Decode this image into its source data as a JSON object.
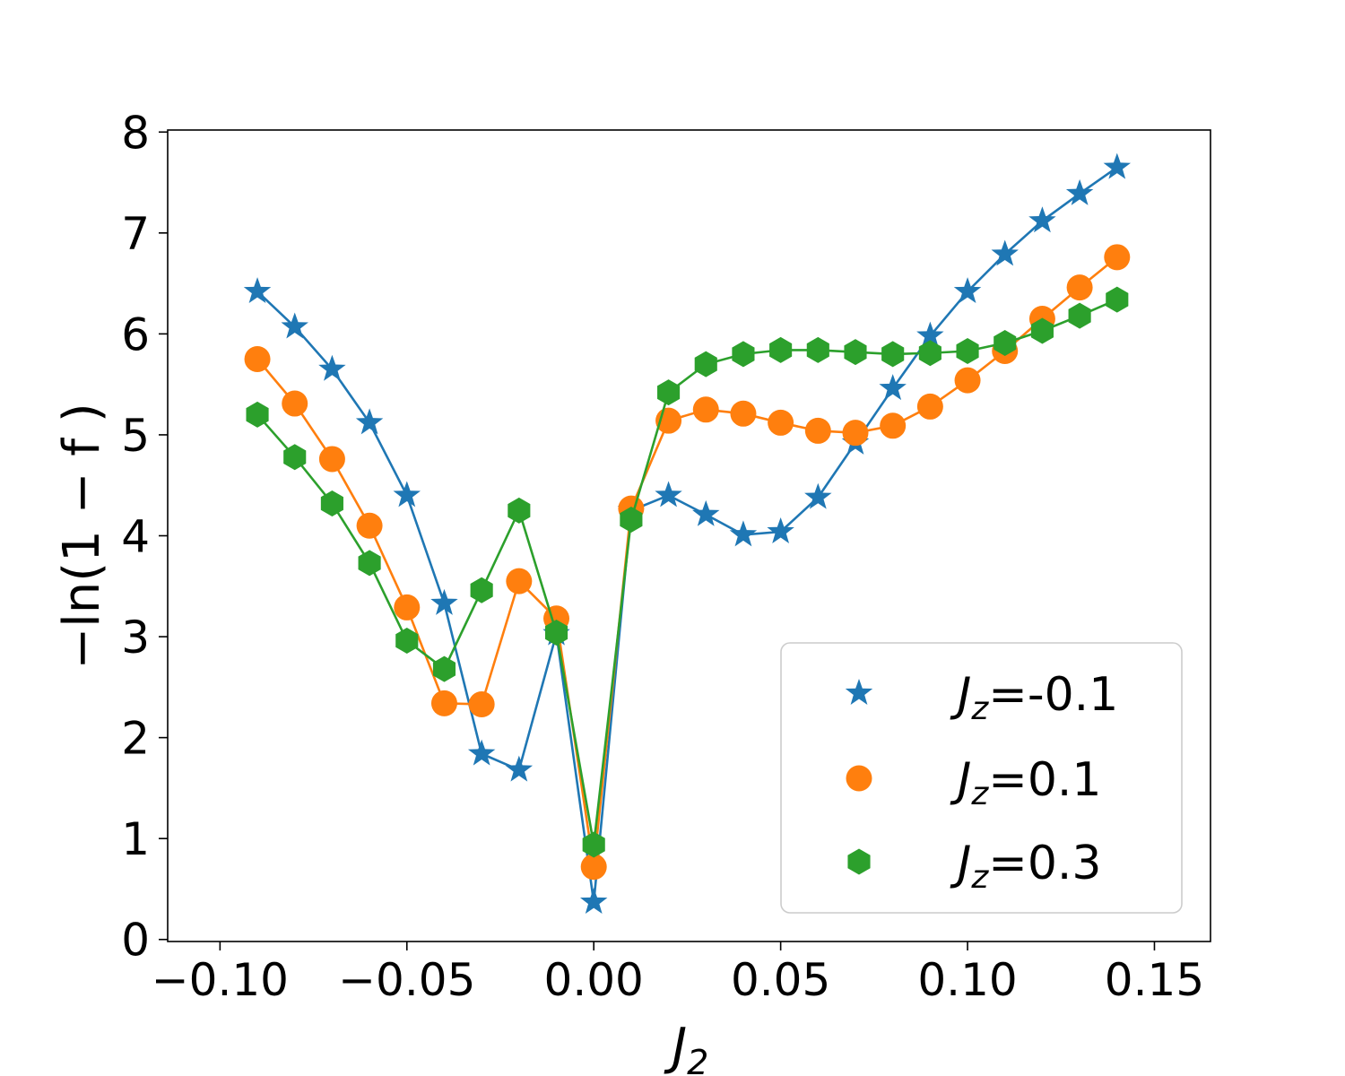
{
  "chart_data": {
    "type": "line",
    "title": "",
    "xlabel": "J",
    "xlabel_sub": "2",
    "ylabel": "−ln(1 − f )",
    "xlim": [
      -0.114,
      0.165
    ],
    "ylim": [
      -0.02,
      8.02
    ],
    "xticks": [
      -0.1,
      -0.05,
      0.0,
      0.05,
      0.1,
      0.15
    ],
    "xtick_labels": [
      "−0.10",
      "−0.05",
      "0.00",
      "0.05",
      "0.10",
      "0.15"
    ],
    "yticks": [
      0,
      1,
      2,
      3,
      4,
      5,
      6,
      7,
      8
    ],
    "ytick_labels": [
      "0",
      "1",
      "2",
      "3",
      "4",
      "5",
      "6",
      "7",
      "8"
    ],
    "legend_position": "lower-right",
    "x": [
      -0.09,
      -0.08,
      -0.07,
      -0.06,
      -0.05,
      -0.04,
      -0.03,
      -0.02,
      -0.01,
      0.0,
      0.01,
      0.02,
      0.03,
      0.04,
      0.05,
      0.06,
      0.07,
      0.08,
      0.09,
      0.1,
      0.11,
      0.12,
      0.13,
      0.14
    ],
    "series": [
      {
        "name": "Jz=-0.1",
        "legend_sym": "J",
        "legend_sub": "z",
        "legend_val": "=-0.1",
        "color": "#1f77b4",
        "marker": "star",
        "values": [
          6.42,
          6.07,
          5.65,
          5.12,
          4.4,
          3.33,
          1.84,
          1.68,
          3.03,
          0.37,
          4.25,
          4.4,
          4.21,
          4.01,
          4.04,
          4.38,
          4.92,
          5.46,
          5.98,
          6.42,
          6.79,
          7.12,
          7.39,
          7.65
        ]
      },
      {
        "name": "Jz=0.1",
        "legend_sym": "J",
        "legend_sub": "z",
        "legend_val": "=0.1",
        "color": "#ff7f0e",
        "marker": "circle",
        "values": [
          5.75,
          5.31,
          4.76,
          4.1,
          3.29,
          2.34,
          2.33,
          3.55,
          3.18,
          0.72,
          4.27,
          5.14,
          5.25,
          5.21,
          5.12,
          5.04,
          5.02,
          5.09,
          5.28,
          5.54,
          5.83,
          6.15,
          6.46,
          6.76
        ]
      },
      {
        "name": "Jz=0.3",
        "legend_sym": "J",
        "legend_sub": "z",
        "legend_val": "=0.3",
        "color": "#2ca02c",
        "marker": "hexagon",
        "values": [
          5.2,
          4.78,
          4.32,
          3.73,
          2.96,
          2.68,
          3.46,
          4.25,
          3.04,
          0.94,
          4.16,
          5.42,
          5.7,
          5.8,
          5.84,
          5.84,
          5.82,
          5.8,
          5.81,
          5.83,
          5.91,
          6.03,
          6.18,
          6.34
        ]
      }
    ]
  }
}
